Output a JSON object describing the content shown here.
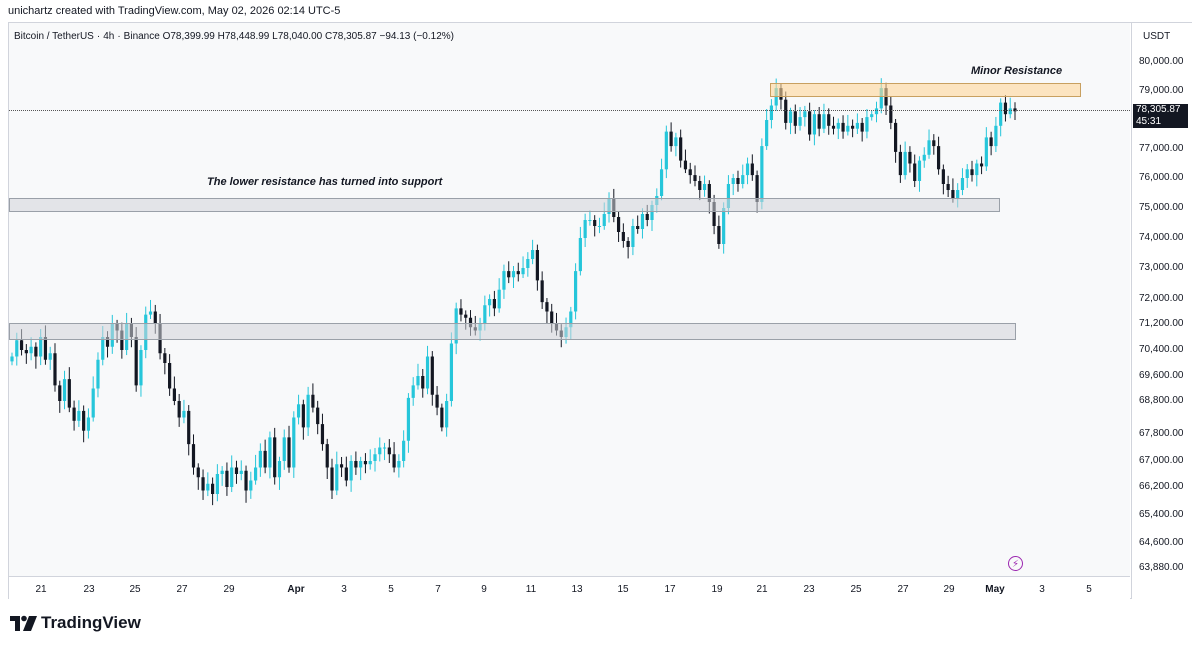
{
  "header": {
    "credit": "unichartz created with TradingView.com, May 02, 2026 02:14 UTC-5",
    "symbol": "Bitcoin / TetherUS",
    "interval": "4h",
    "exchange": "Binance",
    "open": "O78,399.99",
    "high": "H78,448.99",
    "low": "L78,040.00",
    "close": "C78,305.87",
    "change": "−94.13 (−0.12%)"
  },
  "price_axis": {
    "currency": "USDT",
    "ticks": [
      "80,000.00",
      "79,000.00",
      "77,000.00",
      "76,000.00",
      "75,000.00",
      "74,000.00",
      "73,000.00",
      "72,000.00",
      "71,200.00",
      "70,400.00",
      "69,600.00",
      "68,800.00",
      "67,800.00",
      "67,000.00",
      "66,200.00",
      "65,400.00",
      "64,600.00",
      "63,880.00"
    ],
    "current_price": "78,305.87",
    "countdown": "45:31"
  },
  "time_axis": {
    "ticks": [
      "21",
      "23",
      "25",
      "27",
      "29",
      "Apr",
      "3",
      "5",
      "7",
      "9",
      "11",
      "13",
      "15",
      "17",
      "19",
      "21",
      "23",
      "25",
      "27",
      "29",
      "May",
      "3",
      "5"
    ]
  },
  "annotations": {
    "minor_resistance": "Minor Resistance",
    "support_note": "The lower resistance has turned into support"
  },
  "colors": {
    "up": "#26c6da",
    "down": "#131722",
    "text": "#131722"
  },
  "icons": {
    "alert": "lightning-icon",
    "brand": "tradingview-logo"
  },
  "brand": {
    "name": "TradingView"
  },
  "chart_data": {
    "type": "candlestick",
    "title": "Bitcoin / TetherUS · 4h · Binance",
    "x_start": "Mar 20",
    "interval_hours": 4,
    "ylim": [
      63880,
      80400
    ],
    "zones": [
      {
        "label": "Minor Resistance",
        "low": 78950,
        "high": 79200
      },
      {
        "label": "The lower resistance has turned into support",
        "low": 74900,
        "high": 75250
      },
      {
        "label": "",
        "low": 70700,
        "high": 71300
      }
    ],
    "close_path": [
      70200,
      70700,
      70400,
      70300,
      70500,
      70200,
      70800,
      70100,
      70300,
      69300,
      68800,
      69500,
      68600,
      68200,
      68500,
      67900,
      68300,
      69200,
      70100,
      70800,
      70500,
      71200,
      71000,
      70400,
      71200,
      70800,
      69300,
      70400,
      71500,
      71600,
      71200,
      70300,
      70000,
      69200,
      68800,
      68300,
      68500,
      67500,
      66800,
      66500,
      66100,
      66300,
      66000,
      66600,
      66700,
      66200,
      66800,
      66600,
      66700,
      66100,
      66400,
      66800,
      67300,
      66800,
      67700,
      66500,
      67000,
      67700,
      66800,
      68300,
      68700,
      68000,
      69000,
      68600,
      68100,
      67500,
      66800,
      66100,
      66900,
      66800,
      66400,
      67000,
      66800,
      67000,
      66900,
      67000,
      67200,
      67400,
      67400,
      67200,
      66800,
      67000,
      67600,
      68900,
      69300,
      69600,
      69200,
      70200,
      69000,
      68600,
      68000,
      68800,
      70600,
      71700,
      71500,
      71400,
      71100,
      71000,
      71200,
      71800,
      72000,
      71700,
      72300,
      72900,
      72700,
      72900,
      72800,
      73000,
      73300,
      73600,
      72600,
      71900,
      71600,
      71200,
      71000,
      70800,
      71100,
      71600,
      72900,
      74000,
      74600,
      74600,
      74400,
      74400,
      74800,
      75300,
      74700,
      74200,
      73900,
      73700,
      74400,
      74300,
      74800,
      74600,
      75100,
      75400,
      76300,
      77600,
      77100,
      77400,
      76600,
      76300,
      76100,
      75900,
      75600,
      75800,
      75200,
      74400,
      73800,
      75000,
      75800,
      76000,
      75800,
      76100,
      76500,
      76100,
      75200,
      77100,
      78000,
      78500,
      79100,
      78700,
      77900,
      78300,
      77800,
      78100,
      78300,
      77500,
      78200,
      77700,
      78200,
      77800,
      77700,
      77900,
      77600,
      77800,
      77700,
      77900,
      77600,
      78100,
      78200,
      78400,
      79100,
      78500,
      77900,
      76900,
      76100,
      76900,
      76500,
      75900,
      76600,
      76800,
      77300,
      77100,
      76300,
      75800,
      75600,
      75300,
      75600,
      76000,
      76300,
      76100,
      76500,
      76400,
      77400,
      77100,
      77800,
      78600,
      78200,
      78400,
      78300
    ]
  }
}
